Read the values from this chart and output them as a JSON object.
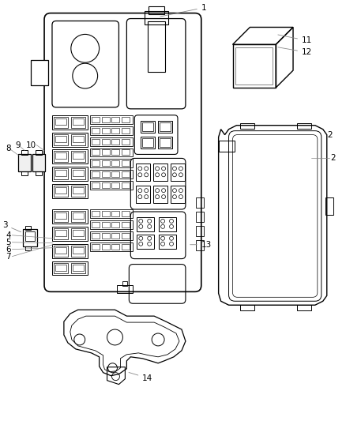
{
  "bg_color": "#ffffff",
  "line_color": "#000000",
  "text_color": "#000000",
  "font_size": 7.5,
  "fig_w": 4.38,
  "fig_h": 5.33
}
